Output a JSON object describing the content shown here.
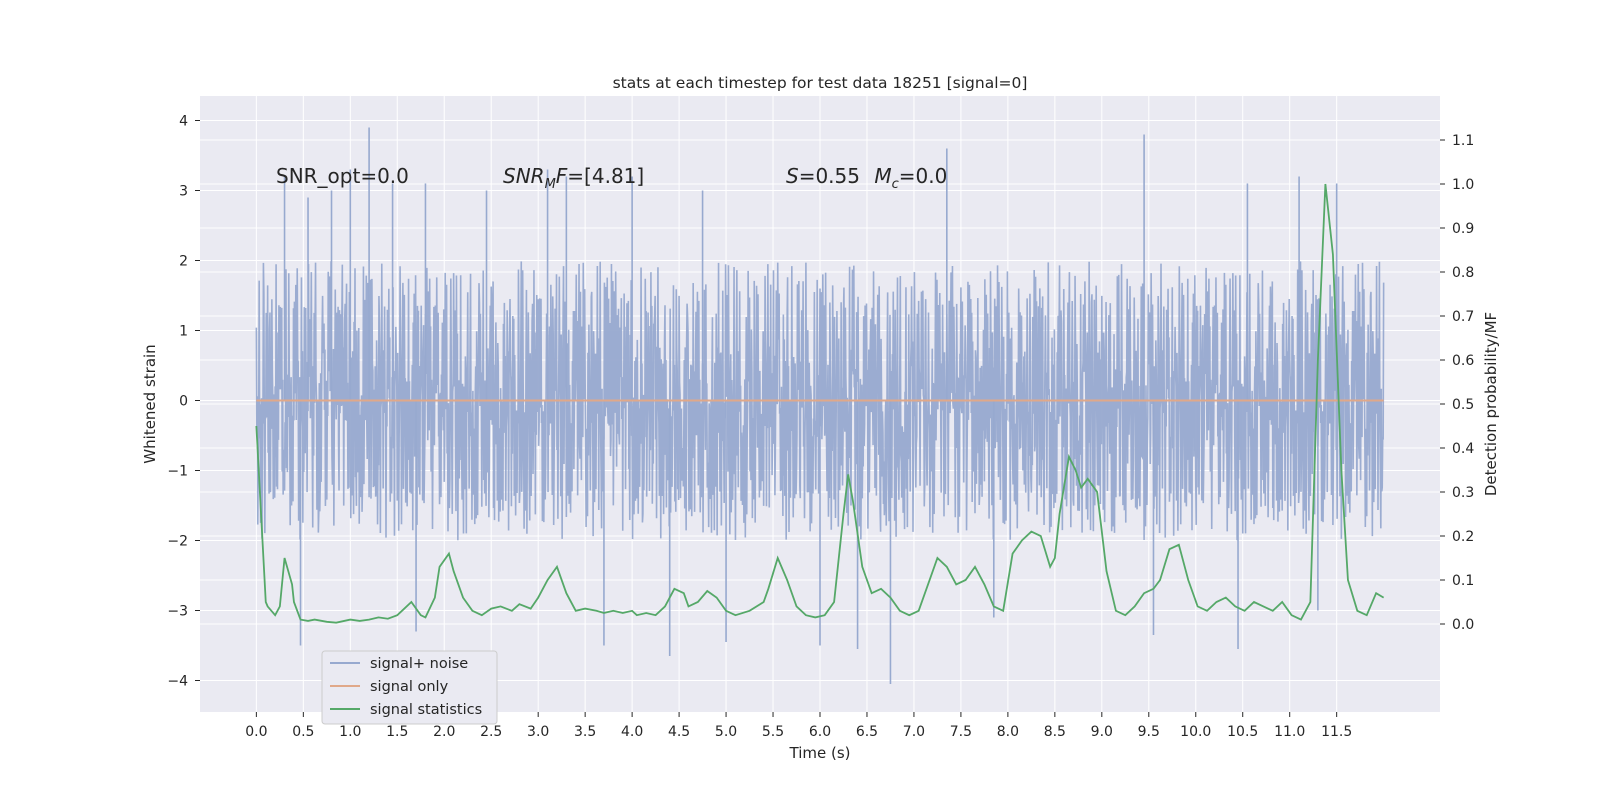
{
  "chart_data": {
    "type": "line",
    "title": "stats at each timestep for test data 18251 [signal=0]",
    "xlabel": "Time (s)",
    "ylabel_left": "Whitened strain",
    "ylabel_right": "Detection probability/MF",
    "xlim": [
      -0.6,
      12.6
    ],
    "ylim_left": [
      -4.45,
      4.35
    ],
    "ylim_right": [
      -0.2,
      1.2
    ],
    "x_ticks": [
      0.0,
      0.5,
      1.0,
      1.5,
      2.0,
      2.5,
      3.0,
      3.5,
      4.0,
      4.5,
      5.0,
      5.5,
      6.0,
      6.5,
      7.0,
      7.5,
      8.0,
      8.5,
      9.0,
      9.5,
      10.0,
      10.5,
      11.0,
      11.5
    ],
    "x_tick_labels": [
      "0.0",
      "0.5",
      "1.0",
      "1.5",
      "2.0",
      "2.5",
      "3.0",
      "3.5",
      "4.0",
      "4.5",
      "5.0",
      "5.5",
      "6.0",
      "6.5",
      "7.0",
      "7.5",
      "8.0",
      "8.5",
      "9.0",
      "9.5",
      "10.0",
      "10.5",
      "11.0",
      "11.5"
    ],
    "y_ticks_left": [
      -4,
      -3,
      -2,
      -1,
      0,
      1,
      2,
      3,
      4
    ],
    "y_tick_labels_left": [
      "−4",
      "−3",
      "−2",
      "−1",
      "0",
      "1",
      "2",
      "3",
      "4"
    ],
    "y_ticks_right": [
      0.0,
      0.1,
      0.2,
      0.3,
      0.4,
      0.5,
      0.6,
      0.7,
      0.8,
      0.9,
      1.0,
      1.1
    ],
    "y_tick_labels_right": [
      "0.0",
      "0.1",
      "0.2",
      "0.3",
      "0.4",
      "0.5",
      "0.6",
      "0.7",
      "0.8",
      "0.9",
      "1.0",
      "1.1"
    ],
    "grid": true,
    "legend_position": "lower-left",
    "annotations": [
      {
        "text": "SNR_opt=0.0",
        "x": 0.2,
        "y": 3.1
      },
      {
        "text": "SNR_MF=[4.81]",
        "x": 2.6,
        "y": 3.1
      },
      {
        "text": "S=0.55   M_c=0.0",
        "x": 5.6,
        "y": 3.1
      }
    ],
    "series": [
      {
        "name": "signal+ noise",
        "axis": "left",
        "color": "#97a9cf",
        "x_range": [
          0.0,
          12.0
        ],
        "typical_envelope": [
          -1.8,
          1.8
        ],
        "spikes": [
          {
            "x": 0.3,
            "y": 3.2
          },
          {
            "x": 0.55,
            "y": 2.9
          },
          {
            "x": 0.8,
            "y": 3.0
          },
          {
            "x": 1.0,
            "y": 3.3
          },
          {
            "x": 1.2,
            "y": 3.9
          },
          {
            "x": 1.45,
            "y": 3.1
          },
          {
            "x": 1.8,
            "y": 3.1
          },
          {
            "x": 2.45,
            "y": 3.0
          },
          {
            "x": 3.1,
            "y": 3.3
          },
          {
            "x": 3.3,
            "y": 3.2
          },
          {
            "x": 4.0,
            "y": 3.2
          },
          {
            "x": 4.75,
            "y": 3.0
          },
          {
            "x": 7.35,
            "y": 3.6
          },
          {
            "x": 9.45,
            "y": 3.8
          },
          {
            "x": 10.55,
            "y": 3.1
          },
          {
            "x": 11.1,
            "y": 3.2
          },
          {
            "x": 11.5,
            "y": 3.1
          },
          {
            "x": 0.47,
            "y": -3.5
          },
          {
            "x": 1.7,
            "y": -3.3
          },
          {
            "x": 3.7,
            "y": -3.5
          },
          {
            "x": 4.4,
            "y": -3.65
          },
          {
            "x": 5.0,
            "y": -3.45
          },
          {
            "x": 6.0,
            "y": -3.5
          },
          {
            "x": 6.4,
            "y": -3.55
          },
          {
            "x": 6.75,
            "y": -4.05
          },
          {
            "x": 7.85,
            "y": -3.1
          },
          {
            "x": 9.55,
            "y": -3.35
          },
          {
            "x": 10.45,
            "y": -3.55
          },
          {
            "x": 11.3,
            "y": -3.0
          }
        ]
      },
      {
        "name": "signal only",
        "axis": "left",
        "color": "#e0a889",
        "x": [
          0.0,
          12.0
        ],
        "y": [
          0.0,
          0.0
        ]
      },
      {
        "name": "signal statistics",
        "axis": "right",
        "color": "#55a868",
        "x": [
          0.0,
          0.1,
          0.12,
          0.2,
          0.25,
          0.3,
          0.38,
          0.4,
          0.47,
          0.55,
          0.62,
          0.75,
          0.85,
          1.0,
          1.1,
          1.2,
          1.3,
          1.4,
          1.5,
          1.55,
          1.65,
          1.75,
          1.8,
          1.9,
          1.95,
          2.05,
          2.1,
          2.2,
          2.3,
          2.4,
          2.5,
          2.6,
          2.72,
          2.8,
          2.92,
          3.0,
          3.1,
          3.2,
          3.3,
          3.4,
          3.5,
          3.62,
          3.7,
          3.8,
          3.9,
          4.0,
          4.05,
          4.15,
          4.25,
          4.35,
          4.45,
          4.55,
          4.6,
          4.7,
          4.8,
          4.9,
          5.0,
          5.1,
          5.25,
          5.4,
          5.45,
          5.55,
          5.65,
          5.75,
          5.85,
          5.95,
          6.05,
          6.15,
          6.25,
          6.3,
          6.35,
          6.45,
          6.55,
          6.65,
          6.75,
          6.85,
          6.95,
          7.05,
          7.15,
          7.25,
          7.35,
          7.45,
          7.55,
          7.65,
          7.75,
          7.85,
          7.95,
          8.05,
          8.15,
          8.25,
          8.35,
          8.45,
          8.5,
          8.55,
          8.65,
          8.72,
          8.78,
          8.85,
          8.95,
          9.05,
          9.15,
          9.25,
          9.35,
          9.45,
          9.55,
          9.62,
          9.72,
          9.82,
          9.92,
          10.02,
          10.12,
          10.22,
          10.32,
          10.42,
          10.52,
          10.62,
          10.72,
          10.82,
          10.92,
          11.02,
          11.12,
          11.22,
          11.3,
          11.38,
          11.46,
          11.55,
          11.62,
          11.72,
          11.82,
          11.92,
          12.0
        ],
        "y": [
          0.45,
          0.05,
          0.04,
          0.02,
          0.04,
          0.15,
          0.09,
          0.05,
          0.01,
          0.007,
          0.01,
          0.005,
          0.003,
          0.01,
          0.007,
          0.01,
          0.015,
          0.012,
          0.02,
          0.03,
          0.05,
          0.02,
          0.015,
          0.06,
          0.13,
          0.16,
          0.12,
          0.06,
          0.03,
          0.02,
          0.035,
          0.04,
          0.03,
          0.045,
          0.035,
          0.06,
          0.1,
          0.13,
          0.07,
          0.03,
          0.035,
          0.03,
          0.025,
          0.03,
          0.025,
          0.03,
          0.02,
          0.025,
          0.02,
          0.04,
          0.08,
          0.07,
          0.04,
          0.05,
          0.075,
          0.06,
          0.03,
          0.02,
          0.03,
          0.05,
          0.08,
          0.15,
          0.1,
          0.04,
          0.02,
          0.015,
          0.02,
          0.05,
          0.25,
          0.34,
          0.28,
          0.13,
          0.07,
          0.08,
          0.06,
          0.03,
          0.02,
          0.03,
          0.09,
          0.15,
          0.13,
          0.09,
          0.1,
          0.13,
          0.09,
          0.04,
          0.03,
          0.16,
          0.19,
          0.21,
          0.2,
          0.13,
          0.15,
          0.25,
          0.38,
          0.35,
          0.31,
          0.33,
          0.3,
          0.12,
          0.03,
          0.02,
          0.04,
          0.07,
          0.08,
          0.1,
          0.17,
          0.18,
          0.1,
          0.04,
          0.03,
          0.05,
          0.06,
          0.04,
          0.03,
          0.05,
          0.04,
          0.03,
          0.05,
          0.02,
          0.01,
          0.05,
          0.6,
          1.0,
          0.84,
          0.35,
          0.1,
          0.03,
          0.02,
          0.07,
          0.06
        ]
      }
    ]
  }
}
